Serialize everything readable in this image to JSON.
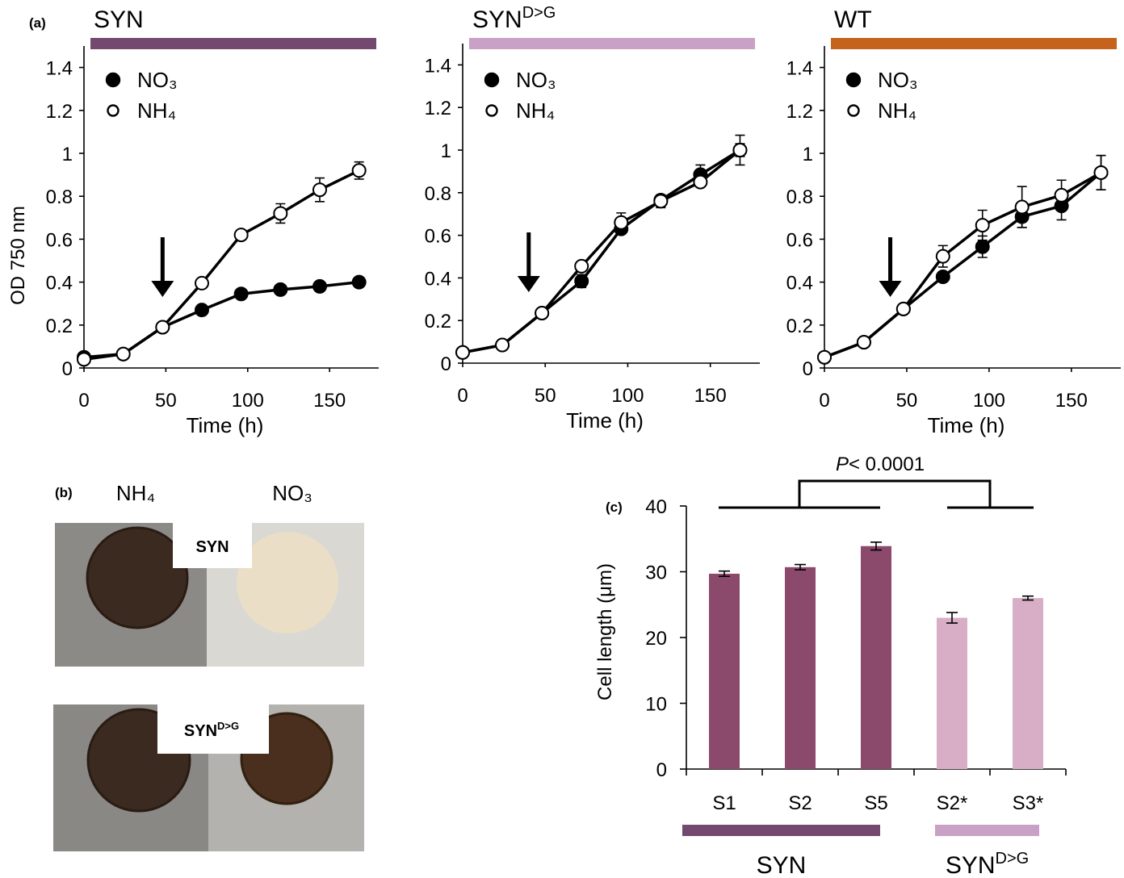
{
  "panel_labels": {
    "a": "(a)",
    "b": "(b)",
    "c": "(c)"
  },
  "chart_data": [
    {
      "type": "line",
      "title": "SYN",
      "title_bar_color": "#73496f",
      "y_label": "OD 750 nm",
      "x_label": "Time (h)",
      "x": [
        0,
        24,
        48,
        72,
        96,
        120,
        144,
        168
      ],
      "xlim": [
        0,
        180
      ],
      "xticks": [
        0,
        50,
        100,
        150
      ],
      "ylim": [
        0,
        1.5
      ],
      "yticks": [
        0,
        0.2,
        0.4,
        0.6,
        0.8,
        1,
        1.2,
        1.4
      ],
      "arrow_x": 48,
      "series": [
        {
          "name": "NO₃",
          "color": "#000000",
          "marker_fill": "#000000",
          "values": [
            0.05,
            0.065,
            0.19,
            0.27,
            0.345,
            0.365,
            0.38,
            0.4
          ],
          "errors": [
            0.01,
            0.01,
            0.01,
            0.01,
            0.02,
            0.015,
            0.015,
            0.01
          ]
        },
        {
          "name": "NH₄",
          "color": "#000000",
          "marker_fill": "#ffffff",
          "values": [
            0.04,
            0.065,
            0.19,
            0.395,
            0.62,
            0.72,
            0.83,
            0.92
          ],
          "errors": [
            0.005,
            0.005,
            0.005,
            0.01,
            0.01,
            0.045,
            0.055,
            0.04
          ]
        }
      ]
    },
    {
      "type": "line",
      "title": "SYN",
      "title_superscript": "D>G",
      "title_bar_color": "#c9a0c6",
      "x_label": "Time (h)",
      "x": [
        0,
        24,
        48,
        72,
        96,
        120,
        144,
        168
      ],
      "xlim": [
        0,
        180
      ],
      "xticks": [
        0,
        50,
        100,
        150
      ],
      "ylim": [
        0,
        1.5
      ],
      "yticks": [
        0,
        0.2,
        0.4,
        0.6,
        0.8,
        1,
        1.2,
        1.4
      ],
      "arrow_x": 40,
      "series": [
        {
          "name": "NO₃",
          "color": "#000000",
          "marker_fill": "#000000",
          "values": [
            0.05,
            0.085,
            0.235,
            0.385,
            0.63,
            0.765,
            0.885,
            1.0
          ],
          "errors": [
            0.005,
            0.005,
            0.01,
            0.03,
            0.02,
            0.02,
            0.045,
            0.07
          ]
        },
        {
          "name": "NH₄",
          "color": "#000000",
          "marker_fill": "#ffffff",
          "values": [
            0.05,
            0.085,
            0.235,
            0.455,
            0.66,
            0.76,
            0.85,
            1.0
          ],
          "errors": [
            0.005,
            0.005,
            0.005,
            0.01,
            0.045,
            0.03,
            0.01,
            0.03
          ]
        }
      ]
    },
    {
      "type": "line",
      "title": "WT",
      "title_bar_color": "#c5621c",
      "x_label": "Time (h)",
      "x": [
        0,
        24,
        48,
        72,
        96,
        120,
        144,
        168
      ],
      "xlim": [
        0,
        180
      ],
      "xticks": [
        0,
        50,
        100,
        150
      ],
      "ylim": [
        0,
        1.5
      ],
      "yticks": [
        0,
        0.2,
        0.4,
        0.6,
        0.8,
        1,
        1.2,
        1.4
      ],
      "arrow_x": 40,
      "series": [
        {
          "name": "NO₃",
          "color": "#000000",
          "marker_fill": "#000000",
          "values": [
            0.05,
            0.12,
            0.275,
            0.425,
            0.565,
            0.705,
            0.755,
            0.91
          ],
          "errors": [
            0.005,
            0.005,
            0.02,
            0.02,
            0.05,
            0.05,
            0.065,
            0.08
          ]
        },
        {
          "name": "NH₄",
          "color": "#000000",
          "marker_fill": "#ffffff",
          "values": [
            0.05,
            0.12,
            0.275,
            0.52,
            0.665,
            0.75,
            0.805,
            0.91
          ],
          "errors": [
            0.005,
            0.005,
            0.005,
            0.05,
            0.07,
            0.095,
            0.07,
            0.08
          ]
        }
      ]
    },
    {
      "type": "bar",
      "y_label": "Cell length (μm)",
      "categories": [
        "S1",
        "S2",
        "S5",
        "S2*",
        "S3*"
      ],
      "values": [
        29.7,
        30.7,
        33.9,
        23.0,
        26.0
      ],
      "errors": [
        0.4,
        0.4,
        0.6,
        0.8,
        0.3
      ],
      "colors": [
        "#8b4a6b",
        "#8b4a6b",
        "#8b4a6b",
        "#d7aec6",
        "#d7aec6"
      ],
      "ylim": [
        0,
        40
      ],
      "yticks": [
        0,
        10,
        20,
        30,
        40
      ],
      "annotation": {
        "italic": "P",
        "text": "< 0.0001"
      },
      "groups": [
        {
          "label": "SYN",
          "color": "#73496f"
        },
        {
          "label": "SYN",
          "label_superscript": "D>G",
          "color": "#c9a0c6"
        }
      ]
    }
  ],
  "photo_panel": {
    "columns": [
      "NH₄",
      "NO₃"
    ],
    "rows": [
      {
        "label": "SYN"
      },
      {
        "label": "SYN",
        "label_superscript": "D>G"
      }
    ]
  }
}
